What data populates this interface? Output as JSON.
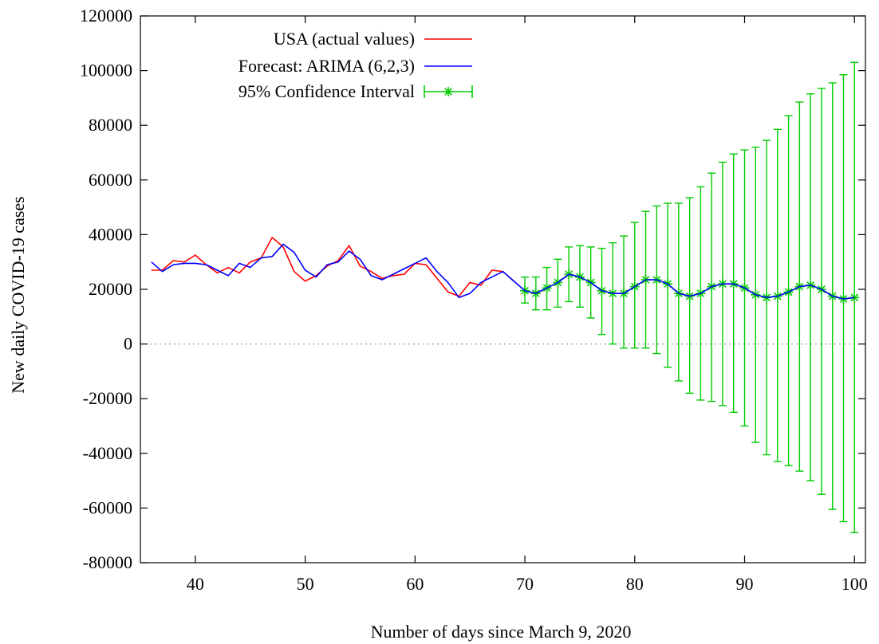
{
  "chart_data": {
    "type": "line",
    "xlabel": "Number of days since March 9, 2020",
    "ylabel": "New daily COVID-19 cases",
    "xlim": [
      35,
      101
    ],
    "ylim": [
      -80000,
      120000
    ],
    "x_ticks": [
      40,
      50,
      60,
      70,
      80,
      90,
      100
    ],
    "y_ticks": [
      -80000,
      -60000,
      -40000,
      -20000,
      0,
      20000,
      40000,
      60000,
      80000,
      100000,
      120000
    ],
    "zero_line": "dotted",
    "grid": false,
    "legend_position": "top-left",
    "series": [
      {
        "name": "USA (actual values)",
        "type": "line",
        "color": "#ff0000",
        "x": [
          36,
          37,
          38,
          39,
          40,
          41,
          42,
          43,
          44,
          45,
          46,
          47,
          48,
          49,
          50,
          51,
          52,
          53,
          54,
          55,
          56,
          57,
          58,
          59,
          60,
          61,
          62,
          63,
          64,
          65,
          66,
          67,
          68,
          69
        ],
        "y": [
          27000,
          27000,
          30500,
          30000,
          32500,
          29000,
          26000,
          28000,
          26000,
          30000,
          31500,
          39000,
          35500,
          26500,
          23000,
          25000,
          28500,
          30500,
          36000,
          28500,
          26500,
          24000,
          25000,
          25500,
          29500,
          29000,
          24000,
          19000,
          17500,
          22500,
          21500,
          27000,
          26500,
          23000
        ]
      },
      {
        "name": "Forecast: ARIMA (6,2,3)",
        "type": "line",
        "color": "#0000ff",
        "x": [
          36,
          37,
          38,
          39,
          40,
          41,
          42,
          43,
          44,
          45,
          46,
          47,
          48,
          49,
          50,
          51,
          52,
          53,
          54,
          55,
          56,
          57,
          58,
          59,
          60,
          61,
          62,
          63,
          64,
          65,
          66,
          67,
          68,
          69,
          70,
          71,
          72,
          73,
          74,
          75,
          76,
          77,
          78,
          79,
          80,
          81,
          82,
          83,
          84,
          85,
          86,
          87,
          88,
          89,
          90,
          91,
          92,
          93,
          94,
          95,
          96,
          97,
          98,
          99,
          100
        ],
        "y": [
          30000,
          26500,
          29000,
          29500,
          29500,
          29000,
          27000,
          25000,
          29500,
          28000,
          31500,
          32000,
          36500,
          33500,
          27000,
          24500,
          29000,
          30000,
          34000,
          31000,
          25000,
          23500,
          25500,
          27500,
          29500,
          31500,
          26500,
          22500,
          17000,
          18500,
          22500,
          24500,
          26500,
          23000,
          19500,
          18500,
          20500,
          22500,
          25500,
          24500,
          22500,
          19500,
          18500,
          18500,
          21000,
          23500,
          23500,
          22000,
          18500,
          17500,
          18500,
          21000,
          22000,
          22000,
          20500,
          18000,
          17000,
          17500,
          19000,
          21000,
          21500,
          20000,
          17500,
          16500,
          17000
        ]
      },
      {
        "name": "95% Confidence Interval",
        "type": "errorbar",
        "color": "#00cc00",
        "marker": "star",
        "x": [
          70,
          71,
          72,
          73,
          74,
          75,
          76,
          77,
          78,
          79,
          80,
          81,
          82,
          83,
          84,
          85,
          86,
          87,
          88,
          89,
          90,
          91,
          92,
          93,
          94,
          95,
          96,
          97,
          98,
          99,
          100
        ],
        "y": [
          19500,
          18500,
          20500,
          22500,
          25500,
          24500,
          22500,
          19500,
          18500,
          18500,
          21000,
          23500,
          23500,
          22000,
          18500,
          17500,
          18500,
          21000,
          22000,
          22000,
          20500,
          18000,
          17000,
          17500,
          19000,
          21000,
          21500,
          20000,
          17500,
          16500,
          17000
        ],
        "lower": [
          15000,
          12500,
          12500,
          13500,
          15500,
          13500,
          9500,
          3500,
          0,
          -1500,
          -1500,
          -1500,
          -3500,
          -8500,
          -13500,
          -18000,
          -20500,
          -21000,
          -22500,
          -25000,
          -30000,
          -36000,
          -40500,
          -43000,
          -44500,
          -46500,
          -50000,
          -55000,
          -60500,
          -65000,
          -69000
        ],
        "upper": [
          24500,
          24500,
          28000,
          31000,
          35500,
          36000,
          35500,
          35000,
          37000,
          39500,
          44500,
          48500,
          50500,
          51500,
          51500,
          53500,
          57500,
          62500,
          66500,
          69500,
          71000,
          72000,
          74500,
          78500,
          83500,
          88500,
          91500,
          93500,
          95500,
          98500,
          103000
        ]
      }
    ]
  }
}
